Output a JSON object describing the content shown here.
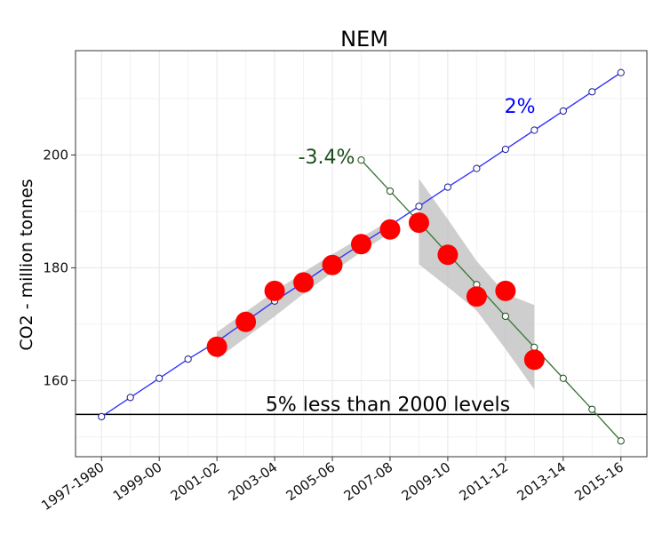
{
  "chart_data": {
    "type": "line",
    "title": "NEM",
    "xlabel": "",
    "ylabel": "CO2 - million tonnes",
    "ylim": [
      146.5,
      218.5
    ],
    "x_tick_labels": [
      "1997-1980",
      "1999-00",
      "2001-02",
      "2003-04",
      "2005-06",
      "2007-08",
      "2009-10",
      "2011-12",
      "2013-14",
      "2015-16"
    ],
    "y_ticks": [
      160,
      180,
      200
    ],
    "grid": true,
    "legend": "none",
    "series": [
      {
        "name": "",
        "type": "line",
        "color": "#3333ff",
        "x": [
          1998,
          1999,
          2000,
          2001,
          2002,
          2003,
          2004,
          2005,
          2006,
          2007,
          2008,
          2009,
          2010,
          2011,
          2012,
          2013,
          2014,
          2015,
          2016
        ],
        "y": [
          153.6,
          157.0,
          160.4,
          163.8,
          166.9,
          170.5,
          174.1,
          177.4,
          180.9,
          184.2,
          187.5,
          190.9,
          194.3,
          197.6,
          201.0,
          204.4,
          207.8,
          211.2,
          214.6
        ]
      },
      {
        "name": "",
        "type": "line",
        "color": "#3d7a3d",
        "x": [
          2007,
          2008,
          2009,
          2010,
          2011,
          2012,
          2013,
          2014,
          2015,
          2016
        ],
        "y": [
          199.1,
          193.6,
          188.1,
          182.5,
          177.0,
          171.4,
          165.9,
          160.4,
          154.9,
          149.3
        ]
      },
      {
        "name": "",
        "type": "scatter",
        "color": "#ff0000",
        "x": [
          2002,
          2003,
          2004,
          2005,
          2006,
          2007,
          2008,
          2009,
          2010,
          2011,
          2012,
          2013
        ],
        "y": [
          166.0,
          170.4,
          175.9,
          177.4,
          180.5,
          184.2,
          186.8,
          188.0,
          182.3,
          174.9,
          175.9,
          163.7
        ]
      }
    ],
    "confidence_bands": [
      {
        "x": [
          2002,
          2003,
          2004,
          2005,
          2006,
          2007,
          2008
        ],
        "upper": [
          168.6,
          172.2,
          175.8,
          179.2,
          182.4,
          185.4,
          188.4
        ],
        "lower": [
          163.8,
          167.6,
          171.4,
          175.4,
          179.2,
          182.8,
          186.2
        ]
      },
      {
        "x": [
          2009,
          2010,
          2011,
          2012,
          2013
        ],
        "upper": [
          195.8,
          188.6,
          181.2,
          175.4,
          173.4
        ],
        "lower": [
          180.6,
          176.6,
          172.4,
          165.6,
          158.4
        ]
      }
    ],
    "reference_line": {
      "y": 154.0,
      "label": "5% less than 2000 levels"
    },
    "annotations": [
      {
        "text": "2%",
        "x": 2012.5,
        "y": 207.5,
        "color": "#0000ff"
      },
      {
        "text": "-3.4%",
        "x": 2005.8,
        "y": 198.5,
        "color": "#1a4d1a"
      }
    ]
  }
}
